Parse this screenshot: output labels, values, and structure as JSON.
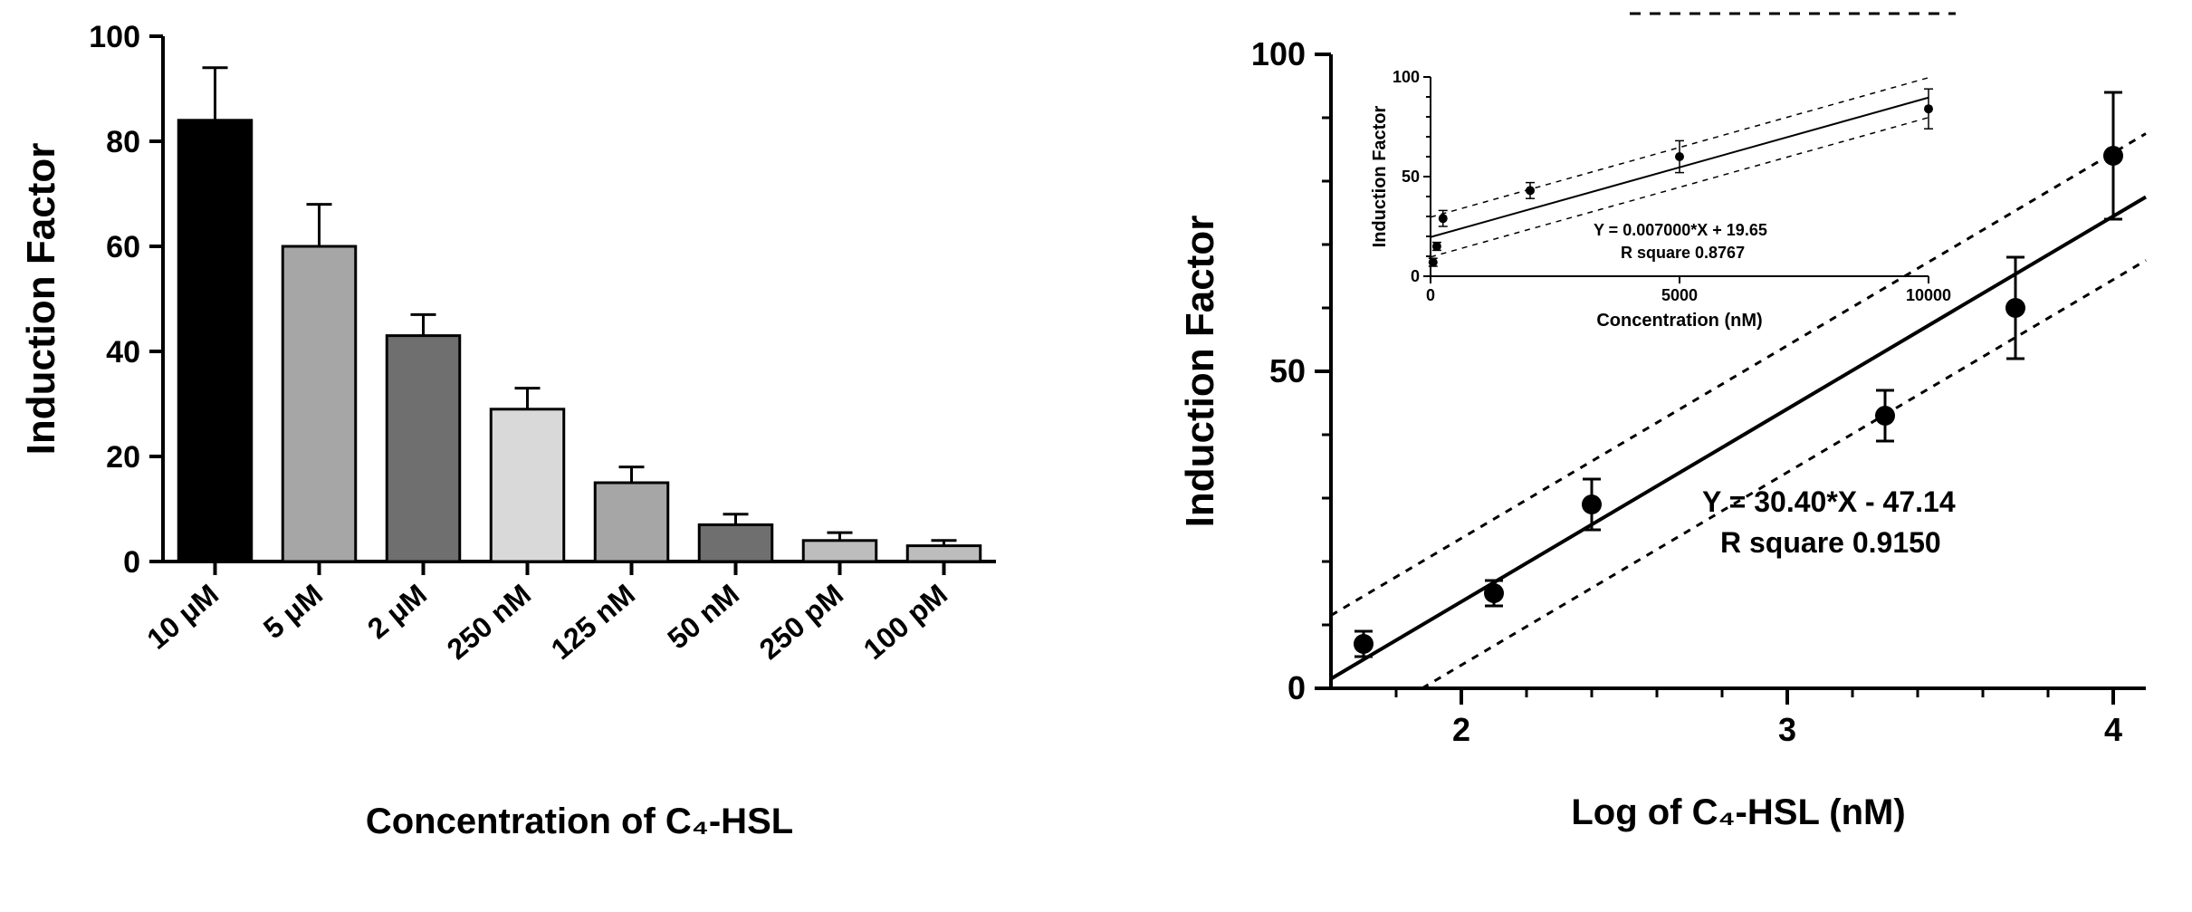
{
  "figure": {
    "background_color": "#ffffff",
    "axis_color": "#000000",
    "error_bar_color": "#000000",
    "error_bar_stroke": 3,
    "font_family": "Arial, Helvetica, sans-serif"
  },
  "bar_chart": {
    "type": "bar",
    "ylabel": "Induction Factor",
    "xlabel": "Concentration of C₄-HSL",
    "ylabel_fontsize": 44,
    "xlabel_fontsize": 40,
    "ylim": [
      0,
      100
    ],
    "ytick_step": 20,
    "tick_label_fontsize": 34,
    "category_label_fontsize": 32,
    "category_label_rotation_deg": -40,
    "bar_stroke": "#000000",
    "bar_stroke_width": 3,
    "axis_stroke_width": 4,
    "categories": [
      "10 μM",
      "5 μM",
      "2 μM",
      "250 nM",
      "125 nM",
      "50 nM",
      "250 pM",
      "100 pM"
    ],
    "values": [
      84,
      60,
      43,
      29,
      15,
      7,
      4,
      3
    ],
    "errors": [
      10,
      8,
      4,
      4,
      3,
      2,
      1.5,
      1
    ],
    "bar_colors": [
      "#000000",
      "#a6a6a6",
      "#6f6f6f",
      "#d9d9d9",
      "#a6a6a6",
      "#6f6f6f",
      "#bdbdbd",
      "#bdbdbd"
    ]
  },
  "scatter_main": {
    "type": "scatter-linear-fit",
    "ylabel": "Induction Factor",
    "xlabel": "Log of C₄-HSL (nM)",
    "ylabel_fontsize": 44,
    "xlabel_fontsize": 40,
    "tick_label_fontsize": 36,
    "xlim": [
      1.6,
      4.1
    ],
    "ylim": [
      0,
      100
    ],
    "ytick_step": 50,
    "xtick_step": 1,
    "axis_stroke_width": 4,
    "points": [
      {
        "x": 1.7,
        "y": 7,
        "err": 2
      },
      {
        "x": 2.1,
        "y": 15,
        "err": 2
      },
      {
        "x": 2.4,
        "y": 29,
        "err": 4
      },
      {
        "x": 3.3,
        "y": 43,
        "err": 4
      },
      {
        "x": 3.7,
        "y": 60,
        "err": 8
      },
      {
        "x": 4.0,
        "y": 84,
        "err": 10
      }
    ],
    "marker_color": "#000000",
    "marker_radius_px": 11,
    "fit_line": {
      "slope": 30.4,
      "intercept": -47.14,
      "stroke": "#000000",
      "stroke_width": 4
    },
    "ci_band_half": 10,
    "ci_dash": "8 8",
    "equation_text": "Y = 30.40*X - 47.14",
    "rsq_text": "R square    0.9150",
    "annotation_fontsize": 32
  },
  "scatter_inset": {
    "type": "scatter-linear-fit",
    "ylabel": "Induction Factor",
    "xlabel": "Concentration (nM)",
    "ylabel_fontsize": 20,
    "xlabel_fontsize": 20,
    "tick_label_fontsize": 18,
    "xlim": [
      0,
      10000
    ],
    "ylim": [
      0,
      100
    ],
    "ytick_step": 50,
    "xtick_step": 5000,
    "axis_stroke_width": 2,
    "points": [
      {
        "x": 50,
        "y": 7,
        "err": 2
      },
      {
        "x": 125,
        "y": 15,
        "err": 2
      },
      {
        "x": 250,
        "y": 29,
        "err": 4
      },
      {
        "x": 2000,
        "y": 43,
        "err": 4
      },
      {
        "x": 5000,
        "y": 60,
        "err": 8
      },
      {
        "x": 10000,
        "y": 84,
        "err": 10
      }
    ],
    "marker_color": "#000000",
    "marker_radius_px": 5,
    "fit_line": {
      "slope": 0.007,
      "intercept": 19.65,
      "stroke": "#000000",
      "stroke_width": 2
    },
    "ci_band_half": 10,
    "ci_dash": "6 6",
    "equation_text": "Y = 0.007000*X + 19.65",
    "rsq_text": "R square    0.8767",
    "annotation_fontsize": 18
  }
}
